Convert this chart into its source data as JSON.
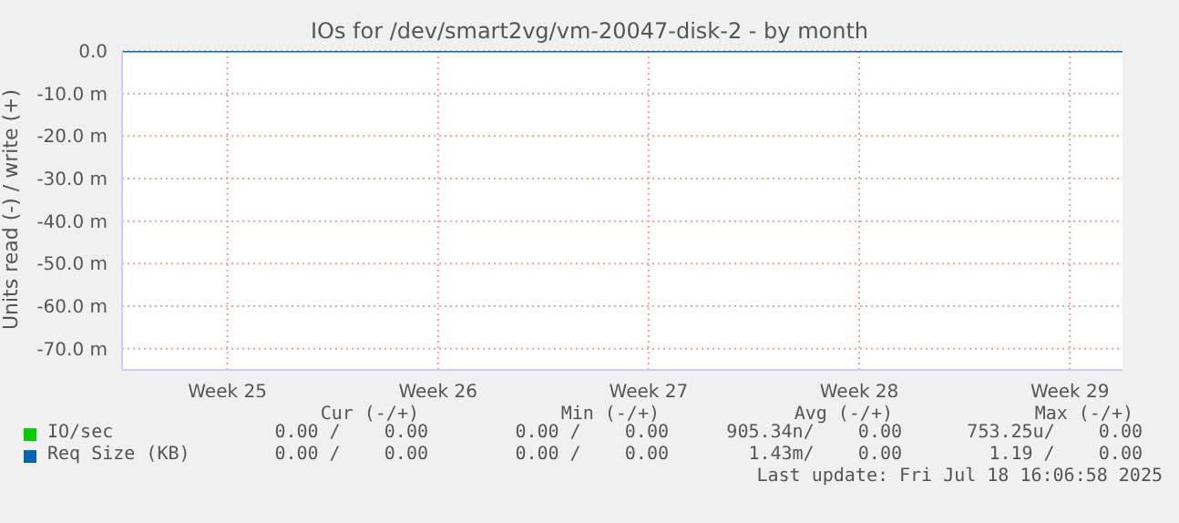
{
  "chart_data": {
    "type": "line",
    "title": "IOs for /dev/smart2vg/vm-20047-disk-2 - by month",
    "ylabel": "Units read (-) / write (+)",
    "categories": [
      null,
      null,
      "Week 25",
      null,
      null,
      null,
      "Week 26",
      null,
      null,
      null,
      "Week 27",
      null,
      null,
      null,
      "Week 28",
      null,
      null,
      null,
      "Week 29",
      null
    ],
    "series": [
      {
        "name": "IO/sec",
        "color": "#00cc00",
        "values": [
          null,
          null,
          null,
          null,
          null,
          null,
          null,
          null,
          null,
          null,
          null,
          null,
          null,
          null,
          null,
          null,
          null,
          null,
          null,
          null
        ]
      },
      {
        "name": "Req Size (KB)",
        "color": "#0066b3",
        "values": [
          0,
          0,
          0,
          0,
          0,
          0,
          0,
          0,
          0,
          0,
          0,
          0,
          0,
          0,
          0,
          0,
          0,
          0,
          0,
          0
        ]
      }
    ],
    "ylim": [
      -75,
      0
    ],
    "yticks": [
      {
        "value": 0,
        "label": "0.0"
      },
      {
        "value": -10,
        "label": "-10.0 m"
      },
      {
        "value": -20,
        "label": "-20.0 m"
      },
      {
        "value": -30,
        "label": "-30.0 m"
      },
      {
        "value": -40,
        "label": "-40.0 m"
      },
      {
        "value": -50,
        "label": "-50.0 m"
      },
      {
        "value": -60,
        "label": "-60.0 m"
      },
      {
        "value": -70,
        "label": "-70.0 m"
      }
    ],
    "grid": true,
    "legend": "bottom",
    "marker": "none",
    "line_style": "solid",
    "annotations": [
      "Cur (-/+)",
      "Min (-/+)",
      "Avg (-/+)",
      "Max (-/+)",
      "0.00 /    0.00",
      "0.00 /    0.00",
      "905.34n/    0.00",
      "753.25u/    0.00",
      "0.00 /    0.00",
      "0.00 /    0.00",
      "1.43m/    0.00",
      "1.19 /    0.00",
      "Last update: Fri Jul 18 16:06:58 2025"
    ]
  }
}
